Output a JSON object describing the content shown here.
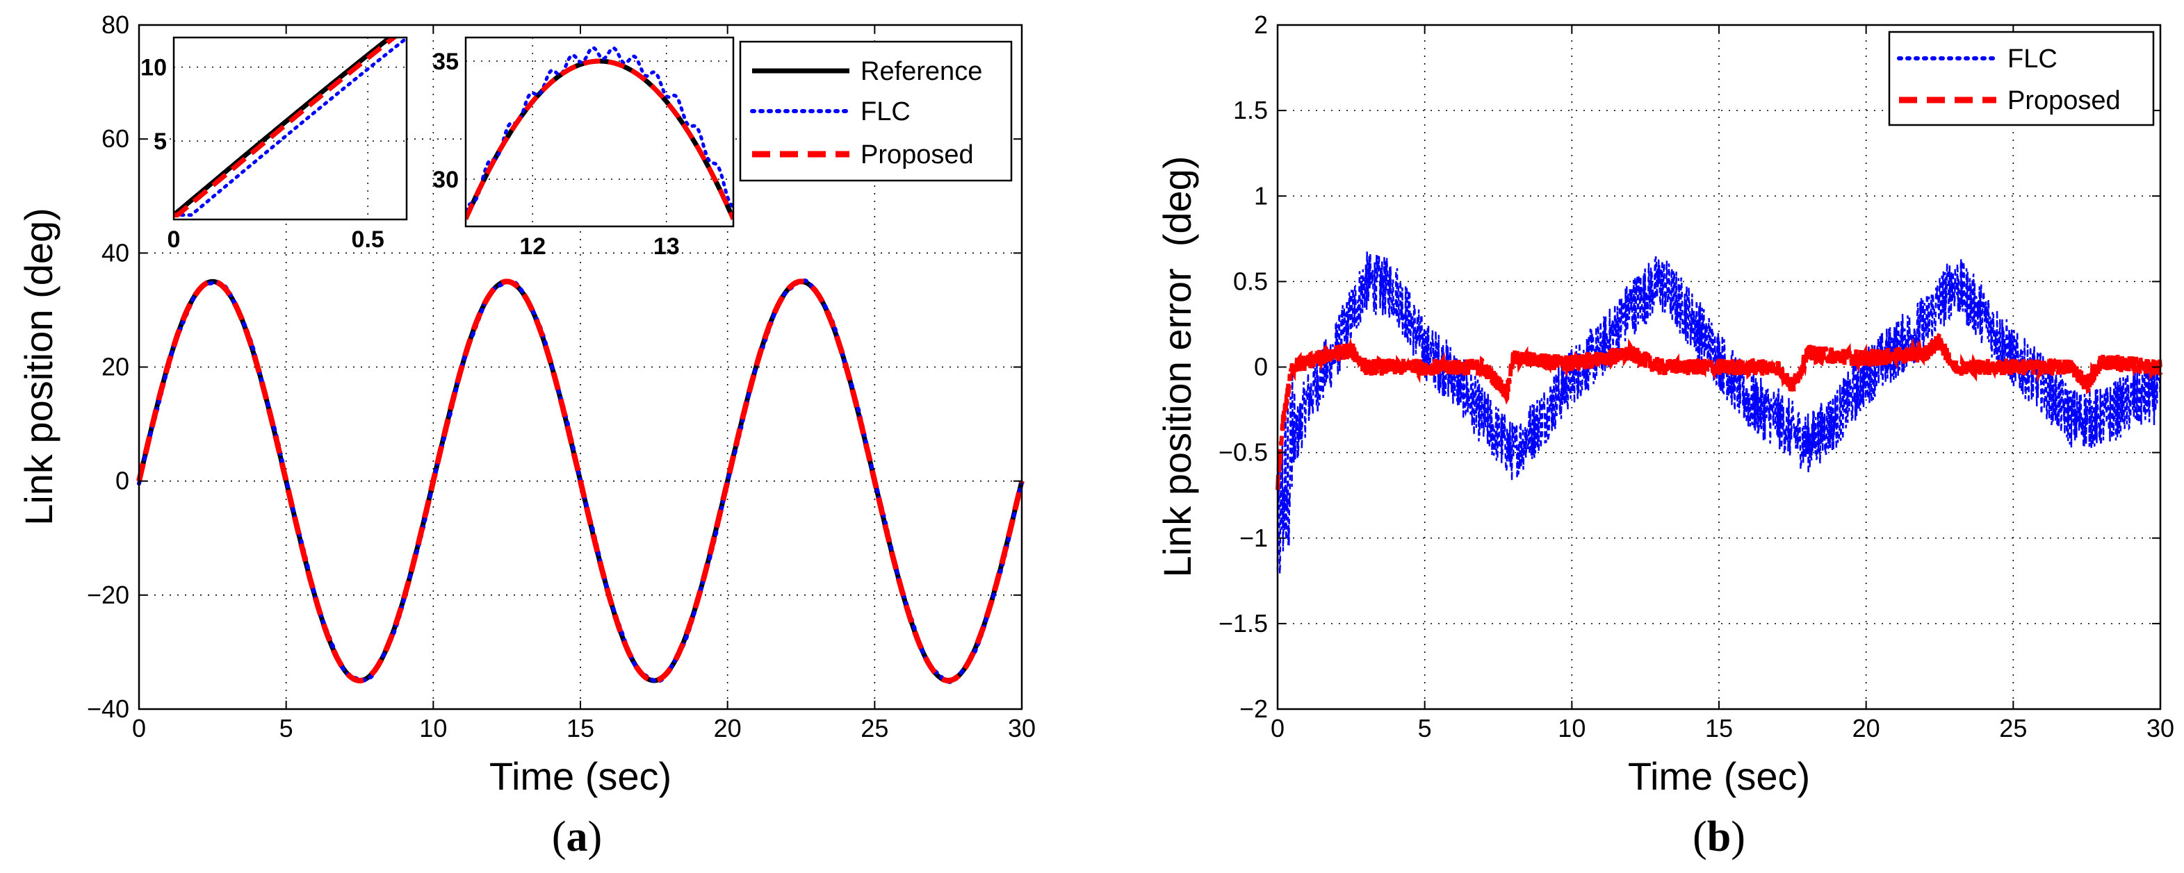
{
  "chart_data": [
    {
      "id": "a",
      "type": "line",
      "caption": {
        "open": "(",
        "letter": "a",
        "close": ")"
      },
      "xlabel": "Time (sec)",
      "ylabel": "Link position (deg)",
      "xlim": [
        0,
        30
      ],
      "ylim": [
        -40,
        80
      ],
      "xticks": [
        "0",
        "5",
        "10",
        "15",
        "20",
        "25",
        "30"
      ],
      "yticks": [
        "−40",
        "−20",
        "0",
        "20",
        "40",
        "60",
        "80"
      ],
      "grid": true,
      "legend_position": "top-right",
      "signal": {
        "shape": "sine",
        "amplitude": 35,
        "period": 10
      },
      "series": [
        {
          "name": "Reference",
          "style": "solid",
          "color": "#000000"
        },
        {
          "name": "FLC",
          "style": "dotted",
          "color": "#0000ff"
        },
        {
          "name": "Proposed",
          "style": "dashed",
          "color": "#ff0000"
        }
      ],
      "insets": [
        {
          "id": "inset1",
          "xlim": [
            0,
            0.6
          ],
          "ylim": [
            -0.3,
            12
          ],
          "xticks": [
            "0",
            "0.5"
          ],
          "yticks": [
            "5",
            "10"
          ],
          "note": "zoom near start"
        },
        {
          "id": "inset2",
          "xlim": [
            11.5,
            13.5
          ],
          "ylim": [
            28,
            36
          ],
          "xticks": [
            "12",
            "13"
          ],
          "yticks": [
            "30",
            "35"
          ],
          "note": "zoom near peak"
        }
      ]
    },
    {
      "id": "b",
      "type": "line",
      "caption": {
        "open": "(",
        "letter": "b",
        "close": ")"
      },
      "xlabel": "Time (sec)",
      "ylabel": "Link position error  (deg)",
      "xlim": [
        0,
        30
      ],
      "ylim": [
        -2,
        2
      ],
      "xticks": [
        "0",
        "5",
        "10",
        "15",
        "20",
        "25",
        "30"
      ],
      "yticks": [
        "−2",
        "−1.5",
        "−1",
        "−0.5",
        "0",
        "0.5",
        "1",
        "1.5",
        "2"
      ],
      "grid": true,
      "legend_position": "top-right",
      "series": [
        {
          "name": "FLC",
          "style": "dotted",
          "color": "#0000ff",
          "envelope_t": [
            0,
            0.3,
            1,
            2,
            3,
            4,
            5,
            6,
            7,
            8,
            9,
            10,
            11,
            12,
            13,
            14,
            15,
            16,
            17,
            18,
            19,
            20,
            21,
            22,
            23,
            24,
            25,
            26,
            27,
            28,
            29,
            30
          ],
          "envelope_v": [
            -1.0,
            -0.6,
            -0.2,
            0.1,
            0.5,
            0.45,
            0.1,
            -0.05,
            -0.3,
            -0.5,
            -0.3,
            -0.05,
            0.1,
            0.35,
            0.5,
            0.3,
            0.05,
            -0.2,
            -0.3,
            -0.45,
            -0.3,
            -0.05,
            0.1,
            0.25,
            0.5,
            0.3,
            0.05,
            -0.1,
            -0.3,
            -0.3,
            -0.2,
            -0.15
          ],
          "noise": 0.18
        },
        {
          "name": "Proposed",
          "style": "dashed",
          "color": "#ff0000",
          "envelope_t": [
            0,
            0.2,
            0.5,
            1,
            2,
            2.5,
            3,
            5,
            7,
            7.8,
            8,
            10,
            12,
            13,
            15,
            17,
            17.5,
            18,
            20,
            22,
            22.5,
            23,
            25,
            27,
            27.5,
            28,
            30
          ],
          "envelope_v": [
            -0.7,
            -0.3,
            0.0,
            0.03,
            0.08,
            0.1,
            0.0,
            0.0,
            0.0,
            -0.15,
            0.05,
            0.02,
            0.08,
            0.0,
            0.0,
            0.0,
            -0.12,
            0.08,
            0.05,
            0.08,
            0.15,
            0.0,
            0.0,
            0.0,
            -0.1,
            0.03,
            0.0
          ],
          "noise": 0.05
        }
      ]
    }
  ]
}
